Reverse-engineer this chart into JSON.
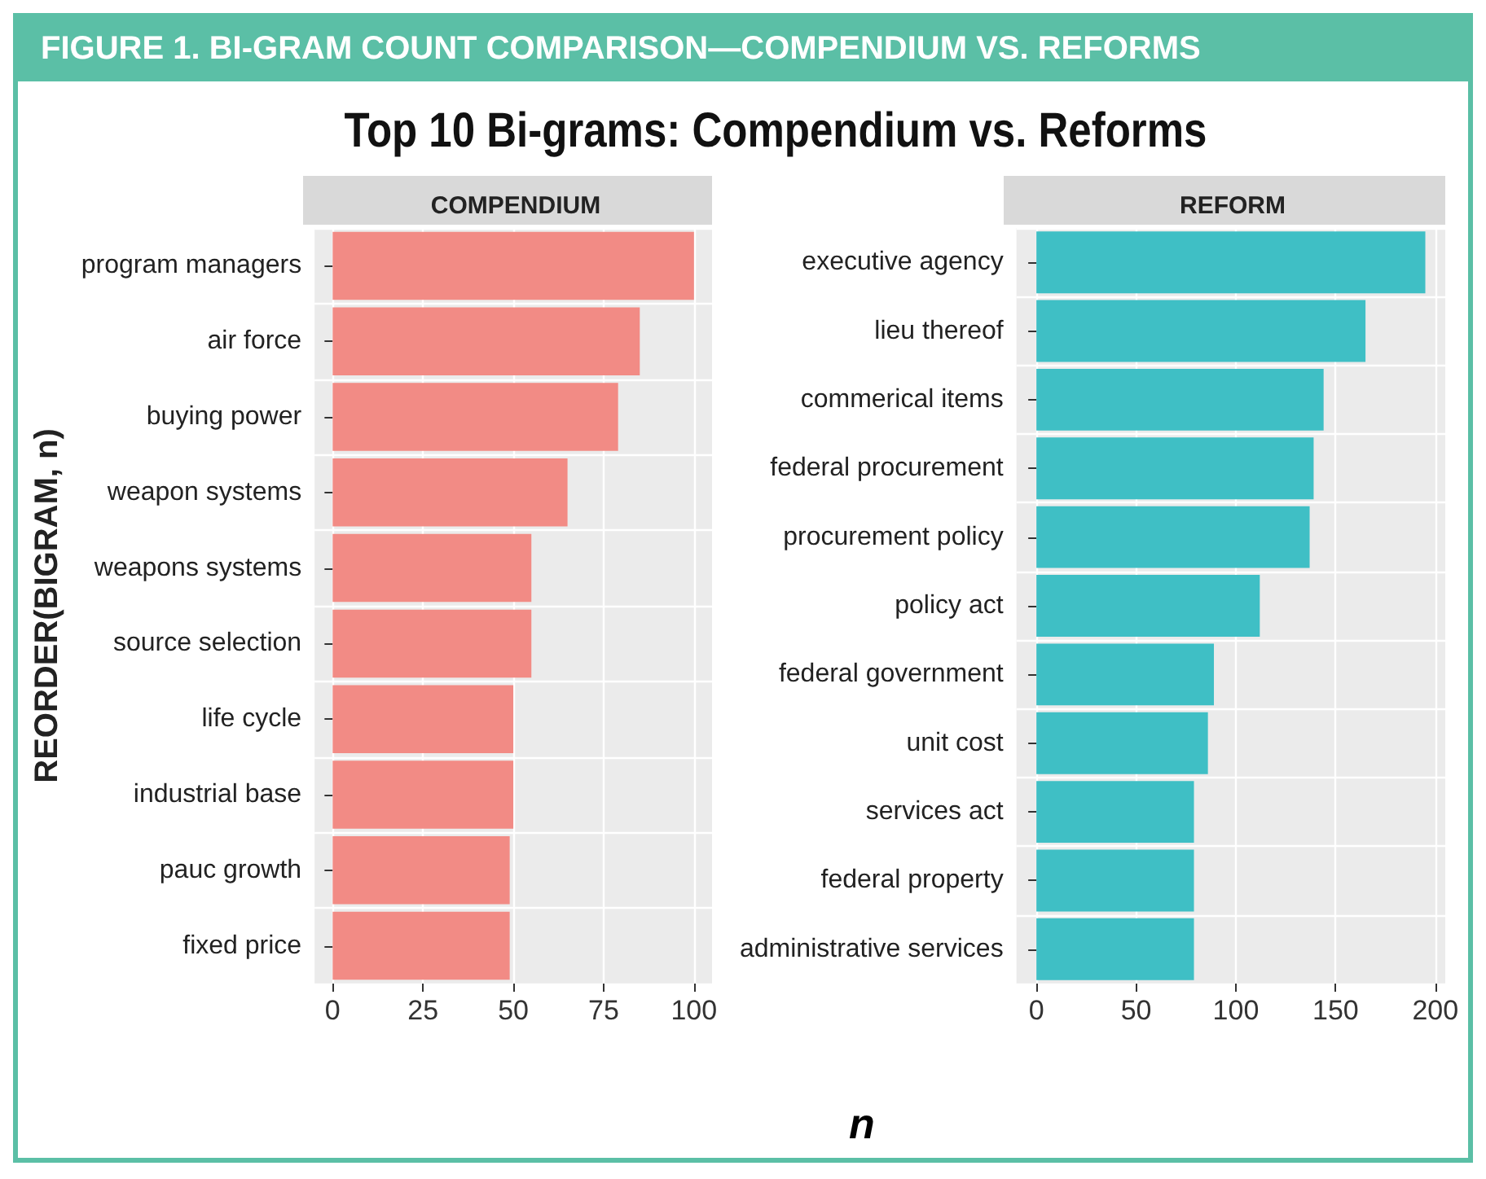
{
  "chart_data": [
    {
      "type": "bar",
      "orientation": "horizontal",
      "title": "COMPENDIUM",
      "annotations": [
        "FIGURE 1. BI-GRAM COUNT COMPARISON—COMPENDIUM VS. REFORMS",
        "Top 10 Bi-grams: Compendium vs. Reforms"
      ],
      "ylabel": "REORDER(BIGRAM, n)",
      "xlabel": "n",
      "categories": [
        "program managers",
        "air force",
        "buying power",
        "weapon systems",
        "weapons systems",
        "source selection",
        "life cycle",
        "industrial base",
        "pauc growth",
        "fixed price"
      ],
      "series": [
        {
          "color": "#f28b85",
          "values": [
            100,
            85,
            79,
            65,
            55,
            55,
            50,
            50,
            49,
            49
          ]
        }
      ],
      "xlim": [
        -5,
        105
      ],
      "xticks": [
        0,
        25,
        50,
        75,
        100
      ],
      "grid": true
    },
    {
      "type": "bar",
      "orientation": "horizontal",
      "title": "REFORM",
      "categories": [
        "executive agency",
        "lieu thereof",
        "commerical items",
        "federal procurement",
        "procurement policy",
        "policy act",
        "federal government",
        "unit cost",
        "services act",
        "federal property",
        "administrative services"
      ],
      "series": [
        {
          "color": "#3fbfc5",
          "values": [
            195,
            165,
            144,
            139,
            137,
            112,
            89,
            86,
            79,
            79,
            79
          ]
        }
      ],
      "xlim": [
        -10,
        205
      ],
      "xticks": [
        0,
        50,
        100,
        150,
        200
      ],
      "grid": true
    }
  ]
}
